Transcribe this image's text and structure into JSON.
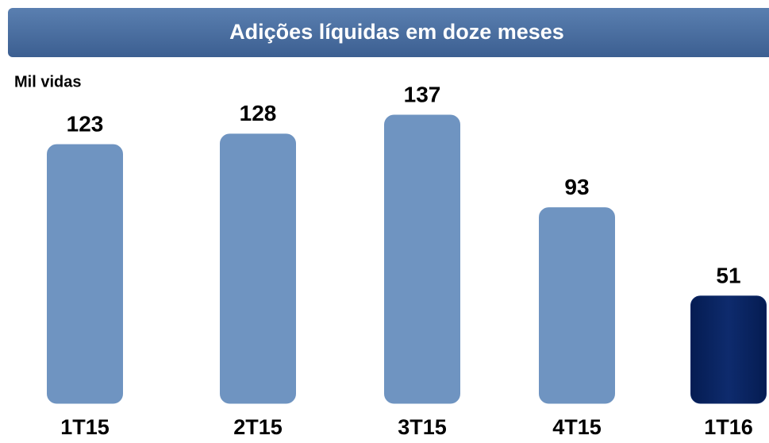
{
  "chart_data": {
    "type": "bar",
    "title": "Adições líquidas em doze meses",
    "unit_label": "Mil vidas",
    "categories": [
      "1T15",
      "2T15",
      "3T15",
      "4T15",
      "1T16"
    ],
    "values": [
      123,
      128,
      137,
      93,
      51
    ],
    "colors": [
      "#6f94c1",
      "#6f94c1",
      "#6f94c1",
      "#6f94c1",
      "#0c2766"
    ]
  }
}
